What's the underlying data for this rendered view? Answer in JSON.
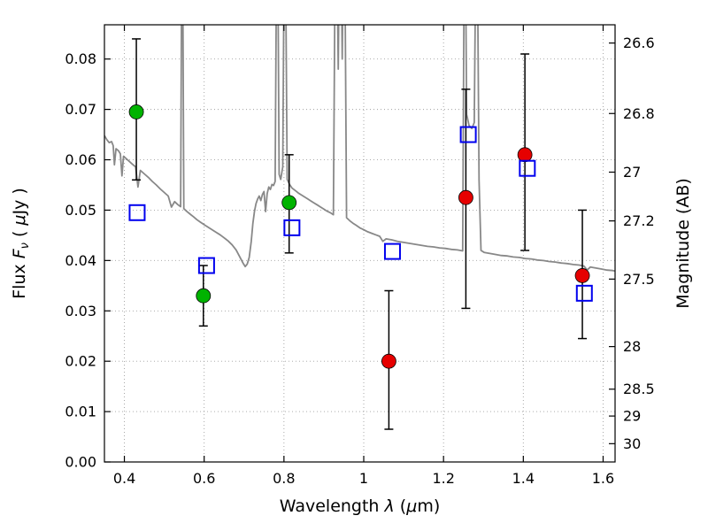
{
  "figure": {
    "background": "#ffffff"
  },
  "chart_data": {
    "type": "scatter",
    "title": "",
    "xlabel": "Wavelength λ (μm)",
    "ylabel": "Flux Fν ( μJy )",
    "ylabel_right": "Magnitude (AB)",
    "xlabel_parts": [
      [
        "n",
        "Wavelength  "
      ],
      [
        "i",
        "λ"
      ],
      [
        "n",
        "  ("
      ],
      [
        "i",
        "μ"
      ],
      [
        "n",
        "m)"
      ]
    ],
    "ylabel_parts": [
      [
        "n",
        "Flux  "
      ],
      [
        "i",
        "F"
      ],
      [
        "s",
        "ν"
      ],
      [
        "n",
        "  ( "
      ],
      [
        "i",
        "μ"
      ],
      [
        "n",
        "Jy )"
      ]
    ],
    "xlim": [
      0.35,
      1.63
    ],
    "ylim": [
      0.0,
      0.0868
    ],
    "grid": true,
    "xticks": [
      0.4,
      0.6,
      0.8,
      1.0,
      1.2,
      1.4,
      1.6
    ],
    "xtick_labels": [
      "0.4",
      "0.6",
      "0.8",
      "1",
      "1.2",
      "1.4",
      "1.6"
    ],
    "yticks": [
      0.0,
      0.01,
      0.02,
      0.03,
      0.04,
      0.05,
      0.06,
      0.07,
      0.08
    ],
    "ytick_labels": [
      "0.00",
      "0.01",
      "0.02",
      "0.03",
      "0.04",
      "0.05",
      "0.06",
      "0.07",
      "0.08"
    ],
    "right_axis": {
      "magnitude_ticks": [
        26.6,
        26.8,
        27.0,
        27.2,
        27.5,
        28.0,
        28.5,
        29.0,
        30.0
      ],
      "magnitude_tick_labels": [
        "26.6",
        "26.8",
        "27",
        "27.2",
        "27.5",
        "28",
        "28.5",
        "29",
        "30"
      ],
      "ab_zeropoint_ujy": 23.9
    },
    "colors": {
      "grid": "#a0a0a0",
      "axis": "#000000",
      "errorbar": "#000000",
      "spectrum": "#888888",
      "green": "#00b300",
      "red": "#e60000",
      "blue": "#0000ee"
    },
    "series": [
      {
        "name": "model-spectrum",
        "kind": "line",
        "color": "#888888",
        "linewidth": 1.8,
        "points": [
          [
            0.35,
            0.0648
          ],
          [
            0.356,
            0.064
          ],
          [
            0.362,
            0.0634
          ],
          [
            0.368,
            0.0636
          ],
          [
            0.372,
            0.0628
          ],
          [
            0.375,
            0.059
          ],
          [
            0.379,
            0.0622
          ],
          [
            0.385,
            0.0618
          ],
          [
            0.39,
            0.0612
          ],
          [
            0.394,
            0.0568
          ],
          [
            0.398,
            0.0607
          ],
          [
            0.405,
            0.0602
          ],
          [
            0.412,
            0.0597
          ],
          [
            0.42,
            0.0591
          ],
          [
            0.428,
            0.0586
          ],
          [
            0.434,
            0.0546
          ],
          [
            0.44,
            0.0579
          ],
          [
            0.45,
            0.0572
          ],
          [
            0.46,
            0.0565
          ],
          [
            0.47,
            0.0557
          ],
          [
            0.48,
            0.055
          ],
          [
            0.49,
            0.0542
          ],
          [
            0.5,
            0.0535
          ],
          [
            0.51,
            0.0528
          ],
          [
            0.518,
            0.0506
          ],
          [
            0.526,
            0.0517
          ],
          [
            0.534,
            0.0511
          ],
          [
            0.541,
            0.0507
          ],
          [
            0.545,
            0.12
          ],
          [
            0.549,
            0.0503
          ],
          [
            0.557,
            0.0497
          ],
          [
            0.565,
            0.0492
          ],
          [
            0.573,
            0.0487
          ],
          [
            0.582,
            0.0481
          ],
          [
            0.591,
            0.0476
          ],
          [
            0.6,
            0.0471
          ],
          [
            0.61,
            0.0466
          ],
          [
            0.62,
            0.0461
          ],
          [
            0.63,
            0.0456
          ],
          [
            0.64,
            0.0451
          ],
          [
            0.65,
            0.0445
          ],
          [
            0.66,
            0.0439
          ],
          [
            0.67,
            0.0431
          ],
          [
            0.68,
            0.0421
          ],
          [
            0.69,
            0.0406
          ],
          [
            0.698,
            0.0394
          ],
          [
            0.703,
            0.0388
          ],
          [
            0.708,
            0.0393
          ],
          [
            0.713,
            0.0406
          ],
          [
            0.718,
            0.0438
          ],
          [
            0.722,
            0.0473
          ],
          [
            0.726,
            0.0497
          ],
          [
            0.73,
            0.0513
          ],
          [
            0.734,
            0.0522
          ],
          [
            0.738,
            0.0528
          ],
          [
            0.742,
            0.0519
          ],
          [
            0.746,
            0.0531
          ],
          [
            0.75,
            0.0537
          ],
          [
            0.754,
            0.0497
          ],
          [
            0.758,
            0.0533
          ],
          [
            0.762,
            0.0546
          ],
          [
            0.766,
            0.0541
          ],
          [
            0.77,
            0.0551
          ],
          [
            0.774,
            0.0549
          ],
          [
            0.778,
            0.0557
          ],
          [
            0.783,
            0.12
          ],
          [
            0.788,
            0.0571
          ],
          [
            0.792,
            0.0561
          ],
          [
            0.797,
            0.0586
          ],
          [
            0.802,
            0.12
          ],
          [
            0.808,
            0.0561
          ],
          [
            0.814,
            0.0551
          ],
          [
            0.82,
            0.0544
          ],
          [
            0.828,
            0.0539
          ],
          [
            0.836,
            0.0534
          ],
          [
            0.844,
            0.053
          ],
          [
            0.852,
            0.0526
          ],
          [
            0.86,
            0.0522
          ],
          [
            0.868,
            0.0518
          ],
          [
            0.876,
            0.0514
          ],
          [
            0.884,
            0.051
          ],
          [
            0.892,
            0.0506
          ],
          [
            0.9,
            0.0502
          ],
          [
            0.908,
            0.0498
          ],
          [
            0.916,
            0.0495
          ],
          [
            0.924,
            0.0491
          ],
          [
            0.93,
            0.12
          ],
          [
            0.936,
            0.078
          ],
          [
            0.941,
            0.12
          ],
          [
            0.946,
            0.08
          ],
          [
            0.951,
            0.12
          ],
          [
            0.957,
            0.0485
          ],
          [
            0.965,
            0.0479
          ],
          [
            0.973,
            0.0474
          ],
          [
            0.981,
            0.047
          ],
          [
            0.99,
            0.0465
          ],
          [
            1.0,
            0.0461
          ],
          [
            1.01,
            0.0457
          ],
          [
            1.02,
            0.0454
          ],
          [
            1.03,
            0.0451
          ],
          [
            1.04,
            0.0448
          ],
          [
            1.048,
            0.0438
          ],
          [
            1.056,
            0.0443
          ],
          [
            1.07,
            0.0441
          ],
          [
            1.085,
            0.0438
          ],
          [
            1.1,
            0.0436
          ],
          [
            1.115,
            0.0434
          ],
          [
            1.13,
            0.0432
          ],
          [
            1.145,
            0.043
          ],
          [
            1.16,
            0.0428
          ],
          [
            1.175,
            0.0427
          ],
          [
            1.19,
            0.0425
          ],
          [
            1.205,
            0.0424
          ],
          [
            1.22,
            0.0422
          ],
          [
            1.235,
            0.0421
          ],
          [
            1.248,
            0.0419
          ],
          [
            1.253,
            0.12
          ],
          [
            1.258,
            0.069
          ],
          [
            1.264,
            0.0668
          ],
          [
            1.271,
            0.0662
          ],
          [
            1.277,
            0.0674
          ],
          [
            1.283,
            0.12
          ],
          [
            1.289,
            0.056
          ],
          [
            1.294,
            0.042
          ],
          [
            1.302,
            0.0416
          ],
          [
            1.316,
            0.0414
          ],
          [
            1.33,
            0.0412
          ],
          [
            1.345,
            0.041
          ],
          [
            1.36,
            0.0409
          ],
          [
            1.375,
            0.0407
          ],
          [
            1.39,
            0.0406
          ],
          [
            1.405,
            0.0404
          ],
          [
            1.42,
            0.0403
          ],
          [
            1.435,
            0.0401
          ],
          [
            1.45,
            0.04
          ],
          [
            1.465,
            0.0398
          ],
          [
            1.48,
            0.0397
          ],
          [
            1.495,
            0.0395
          ],
          [
            1.51,
            0.0394
          ],
          [
            1.525,
            0.0392
          ],
          [
            1.54,
            0.0391
          ],
          [
            1.552,
            0.0389
          ],
          [
            1.56,
            0.0381
          ],
          [
            1.568,
            0.0387
          ],
          [
            1.582,
            0.0385
          ],
          [
            1.596,
            0.0383
          ],
          [
            1.61,
            0.0381
          ],
          [
            1.624,
            0.038
          ],
          [
            1.63,
            0.0379
          ]
        ]
      },
      {
        "name": "green-circles",
        "kind": "scatter",
        "marker": "circle",
        "color": "#00b300",
        "points": [
          {
            "x": 0.43,
            "y": 0.0695,
            "err_lo": 0.0135,
            "err_hi": 0.0145
          },
          {
            "x": 0.598,
            "y": 0.033,
            "err_lo": 0.006,
            "err_hi": 0.006
          },
          {
            "x": 0.813,
            "y": 0.0515,
            "err_lo": 0.01,
            "err_hi": 0.0095
          }
        ]
      },
      {
        "name": "red-circles",
        "kind": "scatter",
        "marker": "circle",
        "color": "#e60000",
        "points": [
          {
            "x": 1.063,
            "y": 0.02,
            "err_lo": 0.0135,
            "err_hi": 0.014
          },
          {
            "x": 1.256,
            "y": 0.0525,
            "err_lo": 0.022,
            "err_hi": 0.0215
          },
          {
            "x": 1.404,
            "y": 0.061,
            "err_lo": 0.019,
            "err_hi": 0.02
          },
          {
            "x": 1.548,
            "y": 0.037,
            "err_lo": 0.0125,
            "err_hi": 0.013
          }
        ]
      },
      {
        "name": "blue-open-squares",
        "kind": "scatter",
        "marker": "open-square",
        "color": "#0000ee",
        "points": [
          {
            "x": 0.432,
            "y": 0.0495
          },
          {
            "x": 0.606,
            "y": 0.039
          },
          {
            "x": 0.82,
            "y": 0.0465
          },
          {
            "x": 1.072,
            "y": 0.0418
          },
          {
            "x": 1.262,
            "y": 0.065
          },
          {
            "x": 1.41,
            "y": 0.0583
          },
          {
            "x": 1.553,
            "y": 0.0335
          }
        ]
      }
    ]
  }
}
